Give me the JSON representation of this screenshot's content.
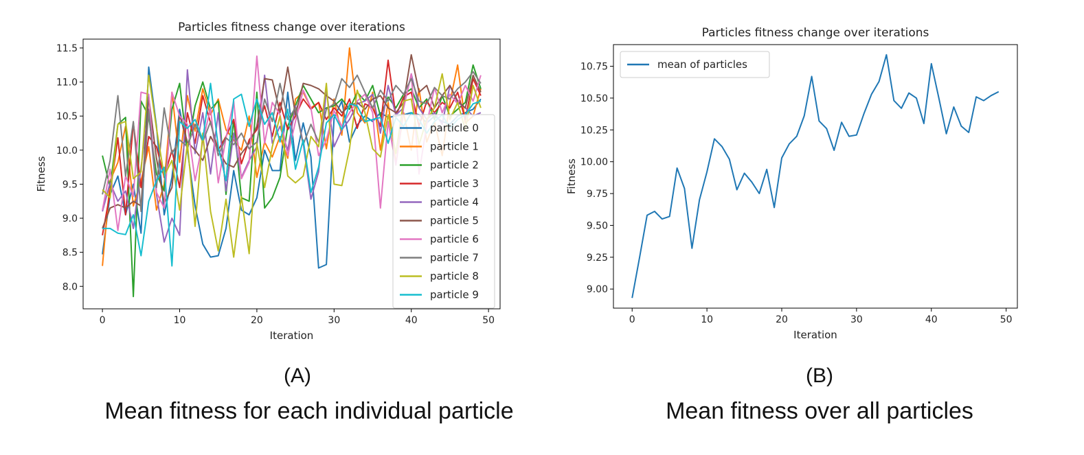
{
  "captions": {
    "a_letter": "(A)",
    "a_text": "Mean fitness for each individual particle",
    "b_letter": "(B)",
    "b_text": "Mean fitness over all particles"
  },
  "chart_data": [
    {
      "type": "line",
      "title": "Particles fitness change over iterations",
      "xlabel": "Iteration",
      "ylabel": "Fitness",
      "xlim": [
        -2.5,
        51.5
      ],
      "ylim": [
        7.67,
        11.63
      ],
      "xticks": [
        0,
        10,
        20,
        30,
        40,
        50
      ],
      "yticks": [
        8.0,
        8.5,
        9.0,
        9.5,
        10.0,
        10.5,
        11.0,
        11.5
      ],
      "grid": false,
      "legend": "right",
      "x": [
        0,
        1,
        2,
        3,
        4,
        5,
        6,
        7,
        8,
        9,
        10,
        11,
        12,
        13,
        14,
        15,
        16,
        17,
        18,
        19,
        20,
        21,
        22,
        23,
        24,
        25,
        26,
        27,
        28,
        29,
        30,
        31,
        32,
        33,
        34,
        35,
        36,
        37,
        38,
        39,
        40,
        41,
        42,
        43,
        44,
        45,
        46,
        47,
        48,
        49
      ],
      "series": [
        {
          "name": "particle 0",
          "color": "#1f77b4",
          "values": [
            8.47,
            9.35,
            9.62,
            9.05,
            9.5,
            8.78,
            11.22,
            10.35,
            9.05,
            9.6,
            10.6,
            10.0,
            9.18,
            8.62,
            8.43,
            8.45,
            8.85,
            9.7,
            9.12,
            9.05,
            9.3,
            10.0,
            9.7,
            9.7,
            10.85,
            9.85,
            10.4,
            9.9,
            8.27,
            8.32,
            10.47,
            10.72,
            10.12,
            10.37,
            10.5,
            10.42,
            10.55,
            10.48,
            10.5,
            10.52,
            10.55,
            10.52,
            10.4,
            10.5,
            10.42,
            10.38,
            10.5,
            10.55,
            10.6,
            10.75
          ]
        },
        {
          "name": "particle 1",
          "color": "#ff7f0e",
          "values": [
            8.3,
            9.55,
            9.82,
            10.35,
            9.18,
            9.55,
            10.05,
            9.12,
            9.5,
            10.85,
            9.82,
            10.8,
            10.28,
            10.9,
            10.52,
            10.75,
            10.3,
            10.15,
            10.0,
            10.5,
            9.6,
            10.12,
            9.9,
            10.2,
            9.88,
            10.75,
            10.85,
            10.62,
            10.7,
            10.02,
            10.75,
            10.22,
            11.5,
            10.55,
            10.4,
            10.85,
            10.0,
            10.7,
            9.8,
            10.55,
            10.0,
            10.9,
            10.12,
            10.42,
            9.92,
            10.7,
            11.25,
            10.4,
            10.5,
            10.9
          ]
        },
        {
          "name": "particle 2",
          "color": "#2ca02c",
          "values": [
            9.92,
            9.45,
            10.38,
            10.48,
            7.85,
            10.72,
            10.5,
            9.65,
            9.4,
            10.6,
            10.98,
            10.0,
            10.65,
            11.0,
            10.6,
            10.72,
            9.35,
            10.45,
            9.3,
            9.25,
            10.85,
            9.15,
            9.3,
            9.6,
            10.35,
            10.65,
            10.95,
            10.75,
            10.55,
            10.62,
            10.65,
            10.75,
            10.6,
            10.85,
            10.72,
            10.95,
            10.5,
            10.78,
            10.62,
            10.82,
            10.9,
            10.62,
            10.75,
            10.45,
            10.8,
            10.5,
            10.6,
            10.7,
            11.25,
            10.9
          ]
        },
        {
          "name": "particle 3",
          "color": "#d62728",
          "values": [
            8.75,
            9.38,
            10.18,
            9.05,
            10.4,
            9.45,
            10.2,
            10.05,
            9.6,
            10.0,
            9.45,
            10.55,
            10.1,
            10.8,
            10.4,
            10.0,
            10.2,
            10.45,
            9.8,
            10.15,
            10.3,
            10.65,
            10.2,
            10.7,
            10.3,
            10.5,
            10.75,
            10.6,
            10.7,
            10.45,
            10.62,
            10.5,
            10.75,
            10.32,
            10.68,
            10.62,
            10.35,
            11.32,
            10.5,
            10.78,
            10.85,
            10.35,
            10.72,
            10.55,
            10.7,
            10.62,
            10.85,
            10.45,
            11.05,
            10.8
          ]
        },
        {
          "name": "particle 4",
          "color": "#9467bd",
          "values": [
            9.1,
            9.52,
            9.25,
            9.4,
            8.85,
            9.75,
            10.6,
            9.35,
            8.65,
            9.0,
            8.75,
            11.18,
            9.95,
            10.55,
            9.65,
            10.55,
            9.4,
            10.25,
            9.6,
            9.85,
            10.05,
            11.1,
            10.1,
            10.35,
            10.0,
            10.65,
            10.1,
            9.28,
            9.68,
            10.88,
            10.05,
            10.3,
            10.45,
            10.68,
            10.72,
            10.82,
            10.25,
            10.95,
            10.52,
            10.62,
            11.12,
            10.62,
            10.45,
            10.55,
            10.38,
            10.95,
            10.7,
            10.62,
            10.5,
            10.55
          ]
        },
        {
          "name": "particle 5",
          "color": "#8c564b",
          "values": [
            8.85,
            9.15,
            9.2,
            9.15,
            9.25,
            9.18,
            10.78,
            9.88,
            9.22,
            9.45,
            10.52,
            10.12,
            10.0,
            9.85,
            10.2,
            10.0,
            9.8,
            9.75,
            9.95,
            10.1,
            10.35,
            11.05,
            11.03,
            10.55,
            11.22,
            10.52,
            10.98,
            10.95,
            10.9,
            10.8,
            10.72,
            10.55,
            10.65,
            10.7,
            10.6,
            10.75,
            10.8,
            10.62,
            10.55,
            10.7,
            11.4,
            10.85,
            10.95,
            10.62,
            10.8,
            10.95,
            10.72,
            10.62,
            11.1,
            10.85
          ]
        },
        {
          "name": "particle 6",
          "color": "#e377c2",
          "values": [
            9.12,
            9.72,
            8.82,
            9.62,
            9.32,
            10.85,
            10.82,
            9.38,
            9.15,
            10.85,
            10.5,
            10.38,
            9.55,
            10.12,
            10.62,
            9.52,
            10.18,
            10.72,
            9.58,
            9.82,
            11.38,
            10.1,
            10.7,
            10.52,
            9.92,
            10.42,
            10.88,
            10.62,
            9.92,
            10.15,
            10.58,
            10.35,
            10.55,
            10.72,
            10.82,
            10.55,
            9.15,
            10.42,
            9.78,
            10.62,
            11.12,
            9.65,
            10.38,
            10.92,
            10.55,
            10.82,
            10.68,
            10.95,
            10.72,
            11.1
          ]
        },
        {
          "name": "particle 7",
          "color": "#7f7f7f",
          "values": [
            9.35,
            9.85,
            10.8,
            9.62,
            10.42,
            9.1,
            10.58,
            9.45,
            10.62,
            9.95,
            10.15,
            10.05,
            10.38,
            10.12,
            10.42,
            9.92,
            10.18,
            10.08,
            10.25,
            10.02,
            10.12,
            10.75,
            10.42,
            10.98,
            10.45,
            10.62,
            10.08,
            10.38,
            10.12,
            10.6,
            10.68,
            11.05,
            10.92,
            11.1,
            10.85,
            10.62,
            10.88,
            10.72,
            10.95,
            10.82,
            11.05,
            10.72,
            10.68,
            10.92,
            10.8,
            10.75,
            10.9,
            11.0,
            11.15,
            10.98
          ]
        },
        {
          "name": "particle 8",
          "color": "#bcbd22",
          "values": [
            9.42,
            9.3,
            10.38,
            10.42,
            9.58,
            9.68,
            11.1,
            10.32,
            9.62,
            9.85,
            9.12,
            10.1,
            8.88,
            10.25,
            9.1,
            8.52,
            9.28,
            8.43,
            9.32,
            8.48,
            10.1,
            9.45,
            10.05,
            10.5,
            9.62,
            9.52,
            9.62,
            10.2,
            10.05,
            10.98,
            9.5,
            9.48,
            10.02,
            10.88,
            10.55,
            10.02,
            9.9,
            10.52,
            9.95,
            10.72,
            10.75,
            10.08,
            10.45,
            10.62,
            11.12,
            10.45,
            10.7,
            10.3,
            10.95,
            10.62
          ]
        },
        {
          "name": "particle 9",
          "color": "#17becf",
          "values": [
            8.85,
            8.85,
            8.78,
            8.76,
            9.05,
            8.45,
            9.25,
            9.55,
            9.75,
            8.3,
            10.42,
            10.32,
            10.45,
            10.15,
            10.98,
            10.05,
            9.55,
            10.75,
            10.82,
            10.35,
            10.75,
            10.38,
            10.55,
            10.12,
            10.6,
            9.72,
            10.15,
            9.38,
            9.75,
            10.4,
            10.52,
            10.3,
            10.68,
            10.65,
            10.42,
            10.45,
            10.48,
            10.1,
            10.48,
            10.35,
            10.55,
            10.45,
            10.25,
            10.42,
            10.52,
            10.32,
            10.45,
            10.52,
            10.68,
            10.72
          ]
        }
      ]
    },
    {
      "type": "line",
      "title": "Particles fitness change over iterations",
      "xlabel": "Iteration",
      "ylabel": "Fitness",
      "xlim": [
        -2.5,
        51.5
      ],
      "ylim": [
        8.85,
        10.92
      ],
      "xticks": [
        0,
        10,
        20,
        30,
        40,
        50
      ],
      "yticks": [
        9.0,
        9.25,
        9.5,
        9.75,
        10.0,
        10.25,
        10.5,
        10.75
      ],
      "grid": false,
      "legend": "top-left",
      "x": [
        0,
        1,
        2,
        3,
        4,
        5,
        6,
        7,
        8,
        9,
        10,
        11,
        12,
        13,
        14,
        15,
        16,
        17,
        18,
        19,
        20,
        21,
        22,
        23,
        24,
        25,
        26,
        27,
        28,
        29,
        30,
        31,
        32,
        33,
        34,
        35,
        36,
        37,
        38,
        39,
        40,
        41,
        42,
        43,
        44,
        45,
        46,
        47,
        48,
        49
      ],
      "series": [
        {
          "name": "mean of particles",
          "color": "#1f77b4",
          "values": [
            8.93,
            9.25,
            9.58,
            9.61,
            9.55,
            9.57,
            9.95,
            9.79,
            9.32,
            9.7,
            9.92,
            10.18,
            10.12,
            10.02,
            9.78,
            9.91,
            9.84,
            9.75,
            9.94,
            9.64,
            10.03,
            10.14,
            10.2,
            10.36,
            10.67,
            10.32,
            10.26,
            10.09,
            10.31,
            10.2,
            10.21,
            10.38,
            10.53,
            10.63,
            10.84,
            10.48,
            10.42,
            10.54,
            10.5,
            10.3,
            10.77,
            10.5,
            10.22,
            10.43,
            10.28,
            10.23,
            10.51,
            10.48,
            10.52,
            10.55
          ]
        }
      ]
    }
  ]
}
